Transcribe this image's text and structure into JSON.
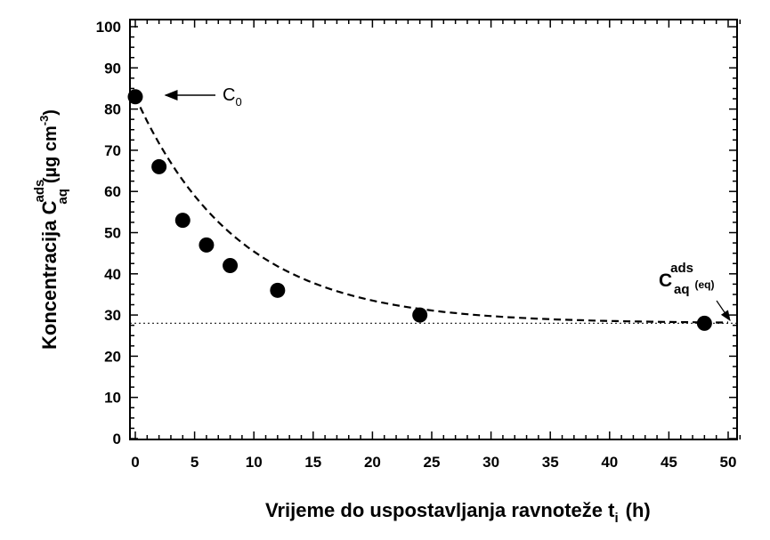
{
  "chart_data": {
    "type": "scatter",
    "xlabel_main": "Vrijeme do uspostavljanja ravnoteže t",
    "xlabel_sub": "i",
    "xlabel_unit": "(h)",
    "ylabel_main": "Koncentracija C",
    "ylabel_sup": "ads",
    "ylabel_sub": "aq",
    "ylabel_unit": "(µg cm",
    "ylabel_unit_sup": "-3",
    "ylabel_unit_close": ")",
    "xlim": [
      0,
      52
    ],
    "ylim": [
      0,
      100
    ],
    "xticks": [
      "0",
      "5",
      "10",
      "15",
      "20",
      "25",
      "30",
      "35",
      "40",
      "45",
      "50"
    ],
    "yticks": [
      "0",
      "10",
      "20",
      "30",
      "40",
      "50",
      "60",
      "70",
      "80",
      "90",
      "100"
    ],
    "x": [
      0,
      2,
      4,
      6,
      8,
      12,
      24,
      48
    ],
    "y": [
      83,
      66,
      53,
      47,
      42,
      36,
      30,
      28
    ],
    "fit_curve": "dashed exponential decay toward equilibrium",
    "equilibrium_line_y": 28,
    "annotations": {
      "c0_main": "C",
      "c0_sub": "0",
      "ceq_main": "C",
      "ceq_sup": "ads",
      "ceq_sub": "aq",
      "ceq_subsub": "(eq)"
    },
    "grid": false,
    "marker_color": "#000000"
  }
}
